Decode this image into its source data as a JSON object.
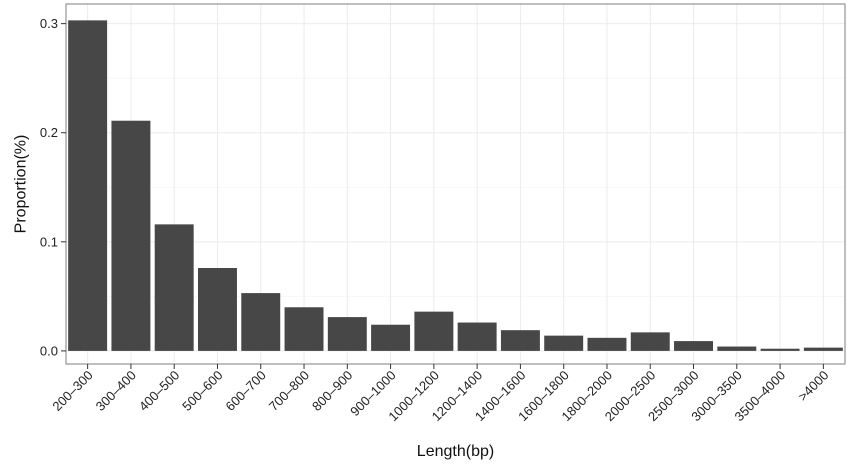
{
  "chart_data": {
    "type": "bar",
    "xlabel": "Length(bp)",
    "ylabel": "Proportion(%)",
    "categories": [
      "200–300",
      "300–400",
      "400–500",
      "500–600",
      "600–700",
      "700–800",
      "800–900",
      "900–1000",
      "1000–1200",
      "1200–1400",
      "1400–1600",
      "1600–1800",
      "1800–2000",
      "2000–2500",
      "2500–3000",
      "3000–3500",
      "3500–4000",
      ">4000"
    ],
    "values": [
      0.303,
      0.211,
      0.116,
      0.076,
      0.053,
      0.04,
      0.031,
      0.024,
      0.036,
      0.026,
      0.019,
      0.014,
      0.012,
      0.017,
      0.009,
      0.004,
      0.002,
      0.003
    ],
    "ylim": [
      -0.012,
      0.318
    ],
    "yticks": [
      0.0,
      0.1,
      0.2,
      0.3
    ],
    "ytick_labels": [
      "0.0",
      "0.1",
      "0.2",
      "0.3"
    ],
    "grid": true,
    "colors": {
      "bar": "#474747",
      "panel_border": "#7f7f7f",
      "grid_major": "#ebebeb",
      "grid_minor": "#f5f5f5"
    }
  }
}
